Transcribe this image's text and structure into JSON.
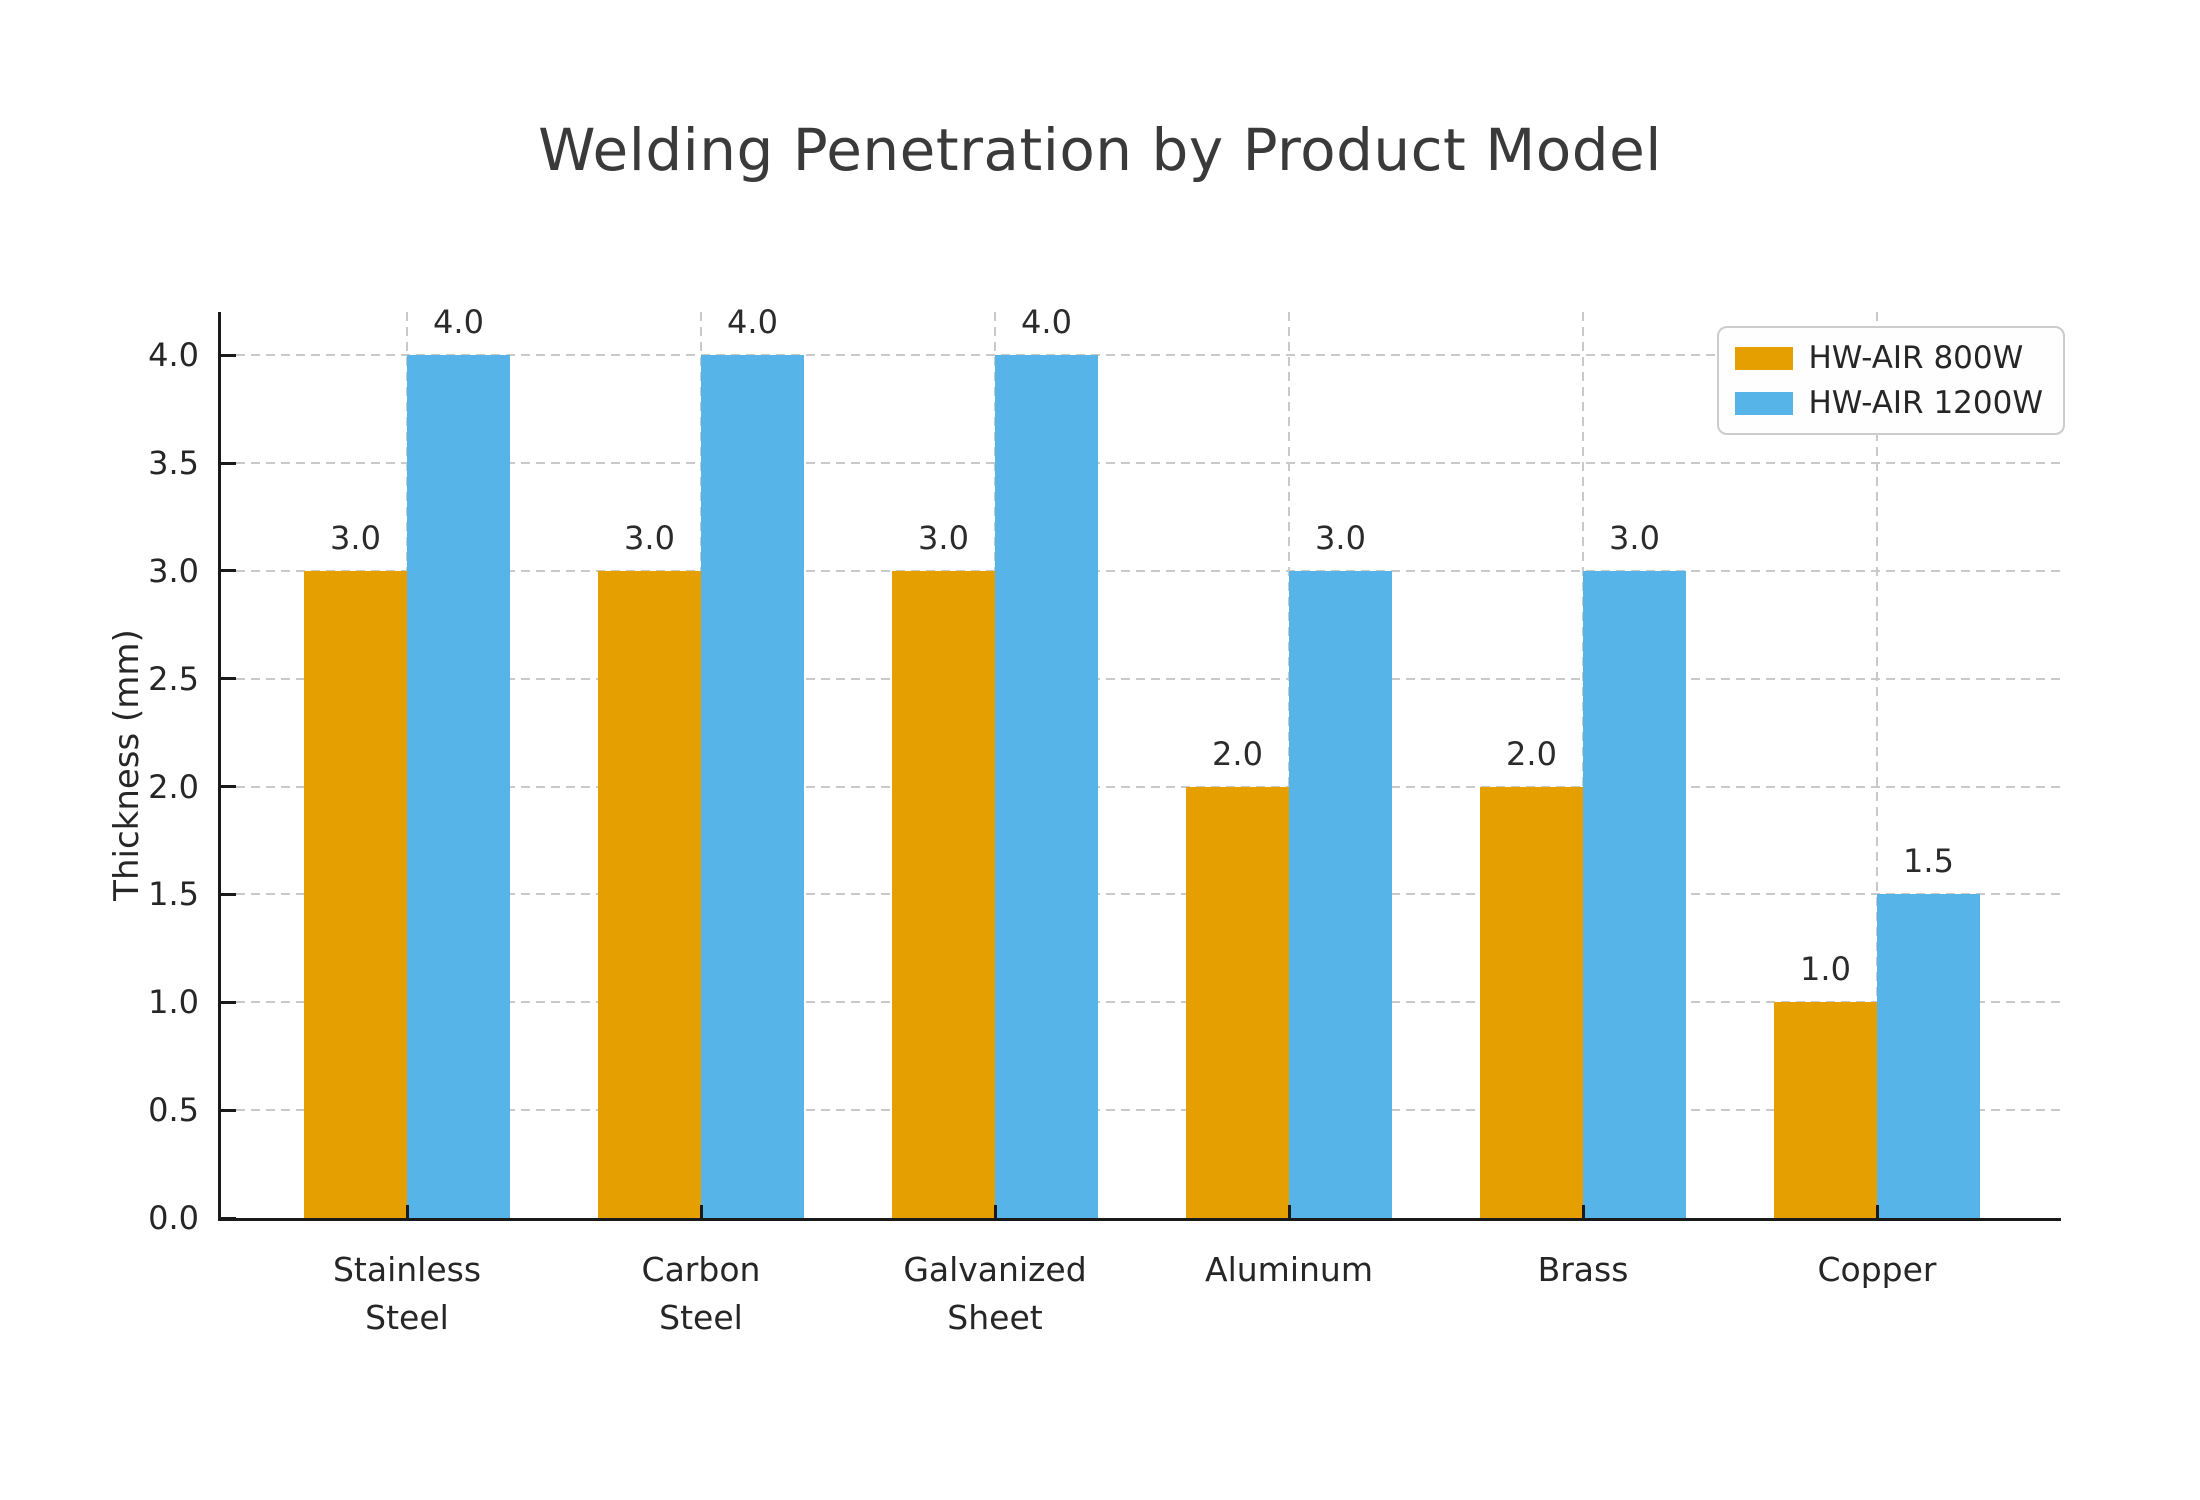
{
  "figure": {
    "title": "Welding Penetration by Product Model",
    "background": "#ffffff"
  },
  "chart_data": {
    "type": "bar",
    "title": "Welding Penetration by Product Model",
    "xlabel": "",
    "ylabel": "Thickness (mm)",
    "categories": [
      "Stainless\nSteel",
      "Carbon\nSteel",
      "Galvanized\nSheet",
      "Aluminum",
      "Brass",
      "Copper"
    ],
    "series": [
      {
        "name": "HW-AIR 800W",
        "color": "#E69F00",
        "values": [
          3.0,
          3.0,
          3.0,
          2.0,
          2.0,
          1.0
        ]
      },
      {
        "name": "HW-AIR 1200W",
        "color": "#56B4E9",
        "values": [
          4.0,
          4.0,
          4.0,
          3.0,
          3.0,
          1.5
        ]
      }
    ],
    "yticks": [
      0.0,
      0.5,
      1.0,
      1.5,
      2.0,
      2.5,
      3.0,
      3.5,
      4.0
    ],
    "ylim": [
      0,
      4.2
    ],
    "grid": true,
    "grid_style": "dashed",
    "tick_direction": "in",
    "legend_position": "upper right",
    "bar_value_labels_shown": true,
    "value_label_format": "one_decimal"
  },
  "style": {
    "grid_color": "#c9c9c9",
    "axis_color": "#1a1a1a",
    "text_color": "#262626",
    "title_color": "#3a3a3a",
    "legend_border_color": "#cccccc"
  }
}
